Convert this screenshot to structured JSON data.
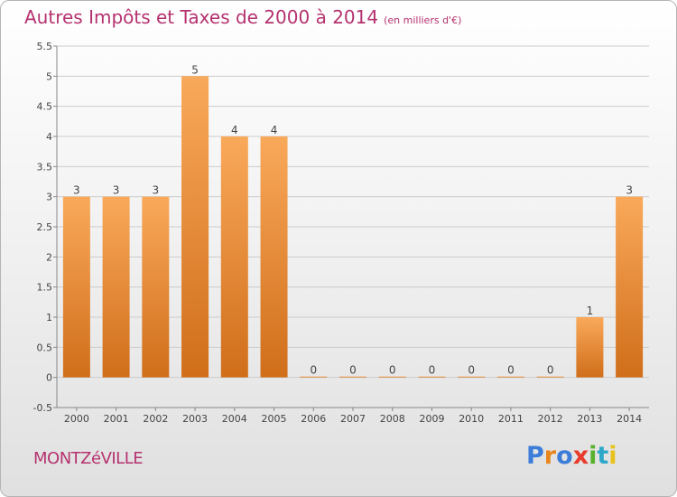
{
  "header": {
    "title": "Autres Impôts et Taxes de 2000 à 2014",
    "unit": "(en milliers d'€)"
  },
  "footer": {
    "commune": "MONTZéVILLE"
  },
  "logo": {
    "letters": [
      "P",
      "r",
      "o",
      "x",
      "i",
      "t",
      "i"
    ],
    "colors": [
      "#3b7dd8",
      "#e8861c",
      "#3b7dd8",
      "#e83b2b",
      "#58b22e",
      "#2fa7c9",
      "#e8c21c"
    ]
  },
  "chart_data": {
    "type": "bar",
    "categories": [
      "2000",
      "2001",
      "2002",
      "2003",
      "2004",
      "2005",
      "2006",
      "2007",
      "2008",
      "2009",
      "2010",
      "2011",
      "2012",
      "2013",
      "2014"
    ],
    "values": [
      3,
      3,
      3,
      5,
      4,
      4,
      0,
      0,
      0,
      0,
      0,
      0,
      0,
      1,
      3
    ],
    "data_labels": [
      "3",
      "3",
      "3",
      "5",
      "4",
      "4",
      "0",
      "0",
      "0",
      "0",
      "0",
      "0",
      "0",
      "1",
      "3"
    ],
    "ylim": [
      -0.5,
      5.5
    ],
    "yticks": [
      "-0.5",
      "0",
      "0.5",
      "1",
      "1.5",
      "2",
      "2.5",
      "3",
      "3.5",
      "4",
      "4.5",
      "5",
      "5.5"
    ],
    "grid": "horizontal",
    "colors": {
      "bar_top": "#f9a95a",
      "bar_bottom": "#d06e1a",
      "grid": "#cccccc",
      "text": "#444444"
    }
  }
}
